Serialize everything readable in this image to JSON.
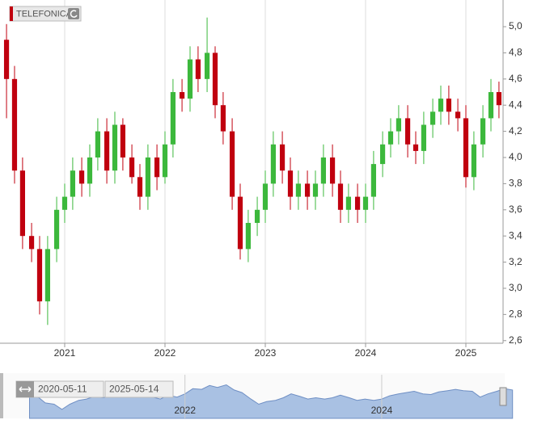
{
  "chart_data": {
    "type": "candlestick",
    "title": "TELEFONICA",
    "x": [
      2020.42,
      2020.5,
      2020.58,
      2020.67,
      2020.75,
      2020.83,
      2020.92,
      2021.0,
      2021.08,
      2021.17,
      2021.25,
      2021.33,
      2021.42,
      2021.5,
      2021.58,
      2021.67,
      2021.75,
      2021.83,
      2021.92,
      2022.0,
      2022.08,
      2022.17,
      2022.25,
      2022.33,
      2022.42,
      2022.5,
      2022.58,
      2022.67,
      2022.75,
      2022.83,
      2022.92,
      2023.0,
      2023.08,
      2023.17,
      2023.25,
      2023.33,
      2023.42,
      2023.5,
      2023.58,
      2023.67,
      2023.75,
      2023.83,
      2023.92,
      2024.0,
      2024.08,
      2024.17,
      2024.25,
      2024.33,
      2024.42,
      2024.5,
      2024.58,
      2024.67,
      2024.75,
      2024.83,
      2024.92,
      2025.0,
      2025.08,
      2025.17,
      2025.25,
      2025.33
    ],
    "open": [
      4.9,
      4.6,
      3.9,
      3.4,
      3.3,
      2.9,
      3.3,
      3.6,
      3.7,
      3.9,
      3.8,
      4.0,
      4.2,
      3.9,
      4.25,
      4.0,
      3.85,
      3.7,
      4.0,
      3.85,
      4.1,
      4.5,
      4.45,
      4.75,
      4.6,
      4.8,
      4.4,
      4.2,
      3.7,
      3.3,
      3.5,
      3.6,
      3.8,
      4.1,
      3.9,
      3.7,
      3.8,
      3.7,
      3.8,
      4.0,
      3.8,
      3.6,
      3.7,
      3.6,
      3.7,
      3.95,
      4.1,
      4.2,
      4.3,
      4.1,
      4.05,
      4.25,
      4.35,
      4.45,
      4.35,
      4.3,
      3.85,
      4.1,
      4.3,
      4.5
    ],
    "high": [
      5.02,
      4.7,
      4.0,
      3.5,
      3.4,
      3.4,
      3.7,
      3.8,
      4.0,
      4.0,
      4.1,
      4.3,
      4.3,
      4.35,
      4.3,
      4.1,
      3.95,
      4.1,
      4.1,
      4.2,
      4.6,
      4.6,
      4.85,
      4.85,
      5.07,
      4.85,
      4.5,
      4.3,
      3.8,
      3.6,
      3.7,
      3.9,
      4.2,
      4.2,
      4.0,
      3.9,
      3.9,
      3.9,
      4.1,
      4.1,
      3.9,
      3.8,
      3.8,
      3.8,
      4.05,
      4.2,
      4.3,
      4.4,
      4.4,
      4.2,
      4.35,
      4.45,
      4.55,
      4.55,
      4.45,
      4.4,
      4.2,
      4.4,
      4.6,
      4.58
    ],
    "low": [
      4.3,
      3.8,
      3.3,
      3.2,
      2.8,
      2.72,
      3.2,
      3.5,
      3.6,
      3.7,
      3.7,
      3.9,
      3.8,
      3.8,
      3.9,
      3.8,
      3.6,
      3.6,
      3.75,
      3.8,
      4.0,
      4.35,
      4.35,
      4.5,
      4.5,
      4.3,
      4.1,
      3.6,
      3.22,
      3.2,
      3.4,
      3.5,
      3.7,
      3.8,
      3.6,
      3.6,
      3.6,
      3.6,
      3.7,
      3.7,
      3.5,
      3.5,
      3.5,
      3.5,
      3.6,
      3.85,
      4.0,
      4.1,
      4.0,
      3.95,
      3.95,
      4.15,
      4.25,
      4.25,
      4.2,
      3.77,
      3.75,
      4.0,
      4.2,
      4.3
    ],
    "close": [
      4.6,
      3.9,
      3.4,
      3.3,
      2.9,
      3.3,
      3.6,
      3.7,
      3.9,
      3.8,
      4.0,
      4.2,
      3.9,
      4.25,
      4.0,
      3.85,
      3.7,
      4.0,
      3.85,
      4.1,
      4.5,
      4.45,
      4.75,
      4.6,
      4.8,
      4.4,
      4.2,
      3.7,
      3.3,
      3.5,
      3.6,
      3.8,
      4.1,
      3.9,
      3.7,
      3.8,
      3.7,
      3.8,
      4.0,
      3.8,
      3.6,
      3.7,
      3.6,
      3.7,
      3.95,
      4.1,
      4.2,
      4.3,
      4.1,
      4.05,
      4.25,
      4.35,
      4.45,
      4.35,
      4.3,
      3.85,
      4.1,
      4.3,
      4.5,
      4.4
    ],
    "up_color": "#3cb83c",
    "down_color": "#c0000f",
    "xlim": [
      2020.355,
      2025.371
    ],
    "ylim": [
      2.58,
      5.204
    ],
    "xticks": [
      2021,
      2022,
      2023,
      2024,
      2025
    ],
    "yticks": [
      {
        "value": 2.6,
        "label": "2,6"
      },
      {
        "value": 2.8,
        "label": "2,8"
      },
      {
        "value": 3.0,
        "label": "3,0"
      },
      {
        "value": 3.2,
        "label": "3,2"
      },
      {
        "value": 3.4,
        "label": "3,4"
      },
      {
        "value": 3.6,
        "label": "3,6"
      },
      {
        "value": 3.8,
        "label": "3,8"
      },
      {
        "value": 4.0,
        "label": "4,0"
      },
      {
        "value": 4.2,
        "label": "4,2"
      },
      {
        "value": 4.4,
        "label": "4,4"
      },
      {
        "value": 4.6,
        "label": "4,6"
      },
      {
        "value": 4.8,
        "label": "4,8"
      },
      {
        "value": 5.0,
        "label": "5,0"
      }
    ],
    "grid": true,
    "navigator": {
      "start_label": "2020-05-11",
      "end_label": "2025-05-14",
      "xlim": [
        2020.12,
        2025.25
      ],
      "xticks": [
        2022,
        2024
      ],
      "color": "#a9c1e3"
    }
  }
}
